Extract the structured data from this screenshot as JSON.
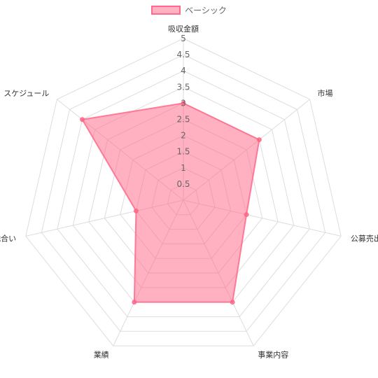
{
  "chart_data": {
    "type": "radar",
    "legend": {
      "position": "top",
      "entries": [
        {
          "name": "ベーシック",
          "color": "#ff6384"
        }
      ]
    },
    "axes": [
      "吸収金額",
      "市場",
      "公募売出比",
      "事業内容",
      "業績",
      "地合い",
      "スケジュール"
    ],
    "scale": {
      "min": 0,
      "max": 5,
      "step": 0.5,
      "ticks": [
        "0.5",
        "1",
        "1.5",
        "2",
        "2.5",
        "3",
        "3.5",
        "4",
        "4.5",
        "5"
      ]
    },
    "series": [
      {
        "name": "ベーシック",
        "values": [
          3,
          3,
          2,
          3.5,
          3.5,
          1.5,
          4
        ]
      }
    ],
    "colors": {
      "fill": "rgba(255,99,132,0.5)",
      "stroke": "rgba(255,99,132,0.8)",
      "grid": "#dddddd"
    }
  }
}
